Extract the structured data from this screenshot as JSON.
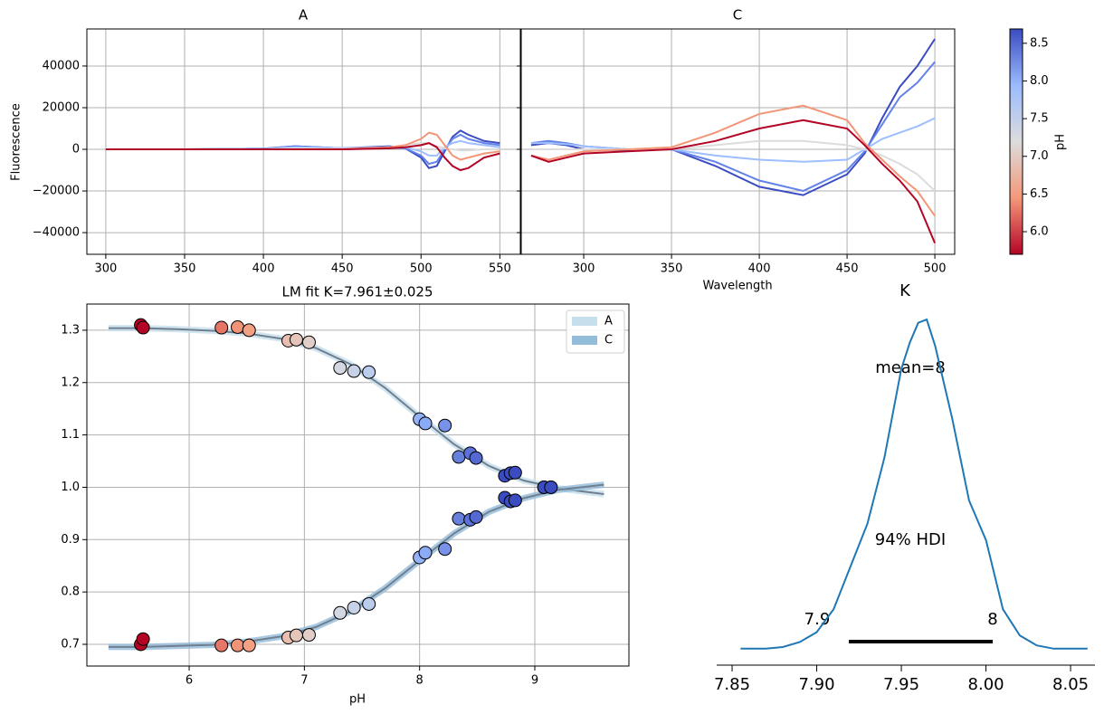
{
  "chart_data": [
    {
      "type": "line",
      "title": "A",
      "y_label": "Fluorescence",
      "grid": true,
      "x": [
        300,
        350,
        400,
        420,
        450,
        480,
        490,
        500,
        505,
        510,
        515,
        520,
        525,
        530,
        540,
        550
      ],
      "xlim": [
        288,
        563
      ],
      "xticks": [
        300,
        350,
        400,
        450,
        500,
        550
      ],
      "ylim": [
        -50400,
        57800
      ],
      "yticks": [
        {
          "value": -40000,
          "label": "−40000"
        },
        {
          "value": -20000,
          "label": "−20000"
        },
        0,
        20000,
        40000
      ],
      "series": [
        {
          "color": "#3b4cc0",
          "values": [
            0,
            0,
            300,
            1500,
            500,
            1500,
            500,
            -4000,
            -9000,
            -8000,
            -1000,
            6000,
            9000,
            7000,
            4000,
            3000
          ]
        },
        {
          "color": "#6282ea",
          "values": [
            0,
            0,
            300,
            1500,
            500,
            1000,
            500,
            -3000,
            -7000,
            -6000,
            0,
            5000,
            7000,
            5000,
            3000,
            2000
          ]
        },
        {
          "color": "#9ebeff",
          "values": [
            0,
            0,
            200,
            1000,
            500,
            1000,
            1000,
            -1000,
            -3000,
            -3000,
            1000,
            3000,
            4000,
            3000,
            2000,
            1000
          ]
        },
        {
          "color": "#dddcdc",
          "values": [
            0,
            0,
            0,
            500,
            300,
            1000,
            2000,
            3000,
            3000,
            1500,
            500,
            0,
            -500,
            -500,
            0,
            0
          ]
        },
        {
          "color": "#f39577",
          "values": [
            0,
            0,
            0,
            0,
            0,
            1000,
            2000,
            5000,
            8000,
            7000,
            2000,
            -3000,
            -5000,
            -4000,
            -2000,
            -1000
          ]
        },
        {
          "color": "#b40426",
          "values": [
            0,
            0,
            0,
            0,
            0,
            500,
            1000,
            2000,
            3000,
            1000,
            -4000,
            -8000,
            -10000,
            -9000,
            -4000,
            -2000
          ]
        }
      ]
    },
    {
      "type": "line",
      "title": "C",
      "x_label": "Wavelength",
      "grid": true,
      "x": [
        270,
        280,
        290,
        300,
        325,
        350,
        375,
        400,
        425,
        450,
        460,
        470,
        480,
        490,
        500
      ],
      "xlim": [
        264.4,
        511.3
      ],
      "xticks": [
        300,
        350,
        400,
        450,
        500
      ],
      "ylim": [
        -50400,
        57800
      ],
      "yticks": [
        -40000,
        -20000,
        0,
        20000,
        40000
      ],
      "series": [
        {
          "color": "#3b4cc0",
          "values": [
            2000,
            3000,
            2000,
            0,
            -500,
            0,
            -8000,
            -18000,
            -22000,
            -12000,
            -2000,
            15000,
            30000,
            40000,
            53000
          ]
        },
        {
          "color": "#6282ea",
          "values": [
            3000,
            4000,
            3000,
            1500,
            0,
            0,
            -6000,
            -15000,
            -20000,
            -10000,
            -1000,
            12000,
            25000,
            32000,
            42000
          ]
        },
        {
          "color": "#9ebeff",
          "values": [
            3000,
            3000,
            2500,
            1500,
            0,
            0,
            -3000,
            -5000,
            -6000,
            -5000,
            0,
            5000,
            8000,
            11000,
            15000
          ]
        },
        {
          "color": "#dddcdc",
          "values": [
            0,
            0,
            0,
            0,
            0,
            0,
            2000,
            4000,
            4000,
            2000,
            0,
            -3000,
            -7000,
            -12000,
            -20000
          ]
        },
        {
          "color": "#f39577",
          "values": [
            -3000,
            -5000,
            -3000,
            -1000,
            0,
            1000,
            8000,
            17000,
            21000,
            14000,
            3000,
            -5000,
            -13000,
            -20000,
            -32000
          ]
        },
        {
          "color": "#b40426",
          "values": [
            -3000,
            -6000,
            -4000,
            -2000,
            -1000,
            0,
            4000,
            10000,
            14000,
            10000,
            2000,
            -7000,
            -15000,
            -25000,
            -45000
          ]
        }
      ]
    },
    {
      "type": "colorbar",
      "label": "pH",
      "ylim": [
        5.7,
        8.69
      ],
      "colors": [
        "#b40426",
        "#f4987a",
        "#dddcdc",
        "#9abbff",
        "#3b4cc0"
      ],
      "yticks": [
        {
          "value": 6,
          "label": "6.0"
        },
        6.5,
        {
          "value": 7,
          "label": "7.0"
        },
        7.5,
        {
          "value": 8,
          "label": "8.0"
        },
        8.5
      ]
    },
    {
      "type": "scatter",
      "title": "LM fit K=7.961±0.025",
      "x_label": "pH",
      "grid": true,
      "xlim": [
        5.112,
        9.817
      ],
      "xticks": [
        6,
        7,
        8,
        9
      ],
      "ylim": [
        0.6585,
        1.35
      ],
      "yticks": [
        0.7,
        0.8,
        0.9,
        {
          "value": 1,
          "label": "1.0"
        },
        1.1,
        1.2,
        1.3
      ],
      "x": [
        5.58,
        5.6,
        6.28,
        6.42,
        6.52,
        6.86,
        6.93,
        7.04,
        7.31,
        7.43,
        7.56,
        8.0,
        8.05,
        8.22,
        8.34,
        8.44,
        8.49,
        8.74,
        8.79,
        8.83,
        9.08,
        9.14
      ],
      "fit_x": [
        5.3,
        5.6,
        5.9,
        6.2,
        6.5,
        6.8,
        7.1,
        7.4,
        7.7,
        8.0,
        8.3,
        8.6,
        8.9,
        9.2,
        9.6
      ],
      "fit_color": "#708090",
      "series": [
        {
          "name": "A",
          "color": "#c6dfec",
          "values": [
            1.31,
            1.305,
            1.305,
            1.306,
            1.3,
            1.28,
            1.282,
            1.277,
            1.228,
            1.222,
            1.22,
            1.13,
            1.122,
            1.118,
            1.058,
            1.065,
            1.056,
            1.022,
            1.027,
            1.028,
            1.0,
            1.0
          ],
          "fit": [
            1.304,
            1.304,
            1.302,
            1.299,
            1.294,
            1.284,
            1.266,
            1.235,
            1.19,
            1.135,
            1.082,
            1.041,
            1.013,
            0.998,
            0.987
          ]
        },
        {
          "name": "C",
          "color": "#92bcd9",
          "values": [
            0.7,
            0.71,
            0.698,
            0.698,
            0.698,
            0.713,
            0.717,
            0.718,
            0.76,
            0.77,
            0.777,
            0.866,
            0.875,
            0.882,
            0.94,
            0.938,
            0.943,
            0.98,
            0.973,
            0.975,
            1.0,
            1.0
          ],
          "fit": [
            0.695,
            0.695,
            0.697,
            0.699,
            0.705,
            0.715,
            0.733,
            0.763,
            0.807,
            0.86,
            0.912,
            0.953,
            0.979,
            0.995,
            1.005
          ]
        }
      ]
    },
    {
      "type": "density",
      "title": "K",
      "color": "#1f77b4",
      "xlim": [
        7.8409,
        8.0644
      ],
      "xticks": [
        7.85,
        {
          "value": 7.9,
          "label": "7.90"
        },
        7.95,
        {
          "value": 8,
          "label": "8.00"
        },
        8.05
      ],
      "ylim": [
        -0.05,
        1.047
      ],
      "x": [
        7.855,
        7.87,
        7.88,
        7.89,
        7.9,
        7.91,
        7.92,
        7.93,
        7.94,
        7.95,
        7.955,
        7.96,
        7.965,
        7.97,
        7.98,
        7.99,
        8.0,
        8.01,
        8.02,
        8.03,
        8.04,
        8.06
      ],
      "values": [
        0,
        0,
        0.005,
        0.02,
        0.05,
        0.12,
        0.25,
        0.38,
        0.58,
        0.85,
        0.93,
        0.99,
        1.0,
        0.92,
        0.7,
        0.45,
        0.33,
        0.12,
        0.04,
        0.01,
        0,
        0
      ],
      "hdi": [
        7.919,
        8.004
      ],
      "mean_label": "mean=8",
      "hdi_label": "94% HDI",
      "hdi_low_label": "7.9",
      "hdi_high_label": "8"
    }
  ]
}
